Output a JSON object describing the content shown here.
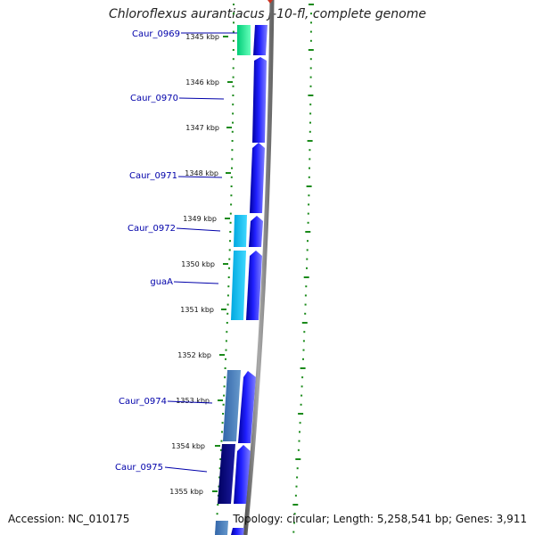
{
  "title": "Chloroflexus aurantiacus J-10-fl, complete genome",
  "footer": {
    "accession": "Accession: NC_010175",
    "topology": "Topology: circular; Length: 5,258,541 bp; Genes: 3,911"
  },
  "colors": {
    "tick_green": "#1a8a1a",
    "gene_label": "#0000aa",
    "arc_gray": "#888888",
    "strand_blue": "#1010ee"
  },
  "kbp_ticks": [
    "1345 kbp",
    "1346 kbp",
    "1347 kbp",
    "1348 kbp",
    "1349 kbp",
    "1350 kbp",
    "1351 kbp",
    "1352 kbp",
    "1353 kbp",
    "1354 kbp",
    "1355 kbp"
  ],
  "gene_labels": [
    "Caur_0969",
    "Caur_0970",
    "Caur_0971",
    "Caur_0972",
    "guaA",
    "Caur_0974",
    "Caur_0975"
  ]
}
